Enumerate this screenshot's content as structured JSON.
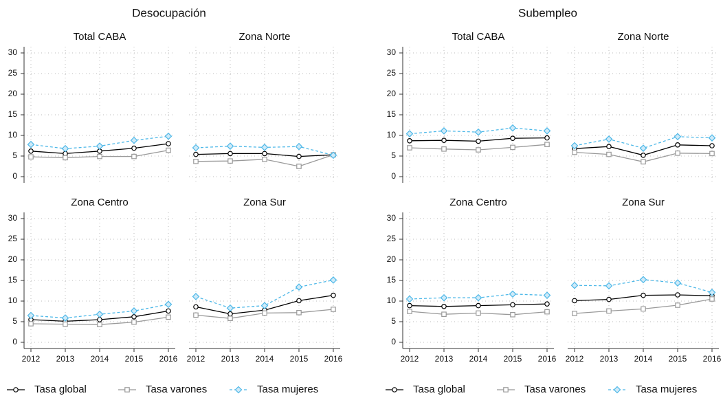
{
  "sections": [
    {
      "title": "Desocupación"
    },
    {
      "title": "Subempleo"
    }
  ],
  "chart_data": [
    {
      "type": "line",
      "title": "Total CABA",
      "x": [
        2012,
        2013,
        2014,
        2015,
        2016
      ],
      "xlim": [
        2011.8,
        2016.2
      ],
      "ylim": [
        -1.5,
        31.5
      ],
      "xticks": [
        2012,
        2013,
        2014,
        2015,
        2016
      ],
      "yticks": [
        0,
        5,
        10,
        15,
        20,
        25,
        30
      ],
      "grid": true,
      "series": [
        {
          "name": "Tasa global",
          "color": "#000000",
          "marker": "circle",
          "linestyle": "solid",
          "values": [
            6.2,
            5.6,
            6.2,
            6.9,
            8.0
          ]
        },
        {
          "name": "Tasa varones",
          "color": "#999999",
          "marker": "square",
          "linestyle": "solid",
          "values": [
            4.8,
            4.6,
            4.9,
            4.9,
            6.4
          ]
        },
        {
          "name": "Tasa mujeres",
          "color": "#4db8e8",
          "marker": "diamond",
          "linestyle": "dashed",
          "values": [
            7.8,
            6.8,
            7.4,
            8.8,
            9.8
          ]
        }
      ]
    },
    {
      "type": "line",
      "title": "Zona Norte",
      "x": [
        2012,
        2013,
        2014,
        2015,
        2016
      ],
      "xlim": [
        2011.8,
        2016.2
      ],
      "ylim": [
        -1.5,
        31.5
      ],
      "xticks": [
        2012,
        2013,
        2014,
        2015,
        2016
      ],
      "yticks": [
        0,
        5,
        10,
        15,
        20,
        25,
        30
      ],
      "grid": true,
      "series": [
        {
          "name": "Tasa global",
          "color": "#000000",
          "marker": "circle",
          "linestyle": "solid",
          "values": [
            5.4,
            5.6,
            5.6,
            4.9,
            5.3
          ]
        },
        {
          "name": "Tasa varones",
          "color": "#999999",
          "marker": "square",
          "linestyle": "solid",
          "values": [
            3.7,
            3.8,
            4.2,
            2.5,
            5.3
          ]
        },
        {
          "name": "Tasa mujeres",
          "color": "#4db8e8",
          "marker": "diamond",
          "linestyle": "dashed",
          "values": [
            7.0,
            7.4,
            7.1,
            7.3,
            5.2
          ]
        }
      ]
    },
    {
      "type": "line",
      "title": "Zona Centro",
      "x": [
        2012,
        2013,
        2014,
        2015,
        2016
      ],
      "xlim": [
        2011.8,
        2016.2
      ],
      "ylim": [
        -1.5,
        31.5
      ],
      "xticks": [
        2012,
        2013,
        2014,
        2015,
        2016
      ],
      "yticks": [
        0,
        5,
        10,
        15,
        20,
        25,
        30
      ],
      "grid": true,
      "series": [
        {
          "name": "Tasa global",
          "color": "#000000",
          "marker": "circle",
          "linestyle": "solid",
          "values": [
            5.5,
            5.1,
            5.5,
            6.2,
            7.6
          ]
        },
        {
          "name": "Tasa varones",
          "color": "#999999",
          "marker": "square",
          "linestyle": "solid",
          "values": [
            4.5,
            4.4,
            4.3,
            4.9,
            6.1
          ]
        },
        {
          "name": "Tasa mujeres",
          "color": "#4db8e8",
          "marker": "diamond",
          "linestyle": "dashed",
          "values": [
            6.5,
            5.9,
            6.8,
            7.6,
            9.2
          ]
        }
      ]
    },
    {
      "type": "line",
      "title": "Zona Sur",
      "x": [
        2012,
        2013,
        2014,
        2015,
        2016
      ],
      "xlim": [
        2011.8,
        2016.2
      ],
      "ylim": [
        -1.5,
        31.5
      ],
      "xticks": [
        2012,
        2013,
        2014,
        2015,
        2016
      ],
      "yticks": [
        0,
        5,
        10,
        15,
        20,
        25,
        30
      ],
      "grid": true,
      "series": [
        {
          "name": "Tasa global",
          "color": "#000000",
          "marker": "circle",
          "linestyle": "solid",
          "values": [
            8.6,
            6.9,
            7.8,
            10.1,
            11.4
          ]
        },
        {
          "name": "Tasa varones",
          "color": "#999999",
          "marker": "square",
          "linestyle": "solid",
          "values": [
            6.6,
            5.8,
            7.1,
            7.2,
            8.0
          ]
        },
        {
          "name": "Tasa mujeres",
          "color": "#4db8e8",
          "marker": "diamond",
          "linestyle": "dashed",
          "values": [
            11.1,
            8.3,
            8.9,
            13.4,
            15.1
          ]
        }
      ]
    },
    {
      "type": "line",
      "title": "Total CABA",
      "x": [
        2012,
        2013,
        2014,
        2015,
        2016
      ],
      "xlim": [
        2011.8,
        2016.2
      ],
      "ylim": [
        -1.5,
        31.5
      ],
      "xticks": [
        2012,
        2013,
        2014,
        2015,
        2016
      ],
      "yticks": [
        0,
        5,
        10,
        15,
        20,
        25,
        30
      ],
      "grid": true,
      "series": [
        {
          "name": "Tasa global",
          "color": "#000000",
          "marker": "circle",
          "linestyle": "solid",
          "values": [
            8.7,
            8.8,
            8.6,
            9.3,
            9.4
          ]
        },
        {
          "name": "Tasa varones",
          "color": "#999999",
          "marker": "square",
          "linestyle": "solid",
          "values": [
            7.0,
            6.7,
            6.5,
            7.1,
            7.8
          ]
        },
        {
          "name": "Tasa mujeres",
          "color": "#4db8e8",
          "marker": "diamond",
          "linestyle": "dashed",
          "values": [
            10.4,
            11.1,
            10.8,
            11.8,
            11.1
          ]
        }
      ]
    },
    {
      "type": "line",
      "title": "Zona Norte",
      "x": [
        2012,
        2013,
        2014,
        2015,
        2016
      ],
      "xlim": [
        2011.8,
        2016.2
      ],
      "ylim": [
        -1.5,
        31.5
      ],
      "xticks": [
        2012,
        2013,
        2014,
        2015,
        2016
      ],
      "yticks": [
        0,
        5,
        10,
        15,
        20,
        25,
        30
      ],
      "grid": true,
      "series": [
        {
          "name": "Tasa global",
          "color": "#000000",
          "marker": "circle",
          "linestyle": "solid",
          "values": [
            6.8,
            7.3,
            5.2,
            7.7,
            7.5
          ]
        },
        {
          "name": "Tasa varones",
          "color": "#999999",
          "marker": "square",
          "linestyle": "solid",
          "values": [
            5.9,
            5.4,
            3.6,
            5.7,
            5.6
          ]
        },
        {
          "name": "Tasa mujeres",
          "color": "#4db8e8",
          "marker": "diamond",
          "linestyle": "dashed",
          "values": [
            7.5,
            9.1,
            6.9,
            9.7,
            9.4
          ]
        }
      ]
    },
    {
      "type": "line",
      "title": "Zona Centro",
      "x": [
        2012,
        2013,
        2014,
        2015,
        2016
      ],
      "xlim": [
        2011.8,
        2016.2
      ],
      "ylim": [
        -1.5,
        31.5
      ],
      "xticks": [
        2012,
        2013,
        2014,
        2015,
        2016
      ],
      "yticks": [
        0,
        5,
        10,
        15,
        20,
        25,
        30
      ],
      "grid": true,
      "series": [
        {
          "name": "Tasa global",
          "color": "#000000",
          "marker": "circle",
          "linestyle": "solid",
          "values": [
            8.9,
            8.7,
            8.9,
            9.1,
            9.3
          ]
        },
        {
          "name": "Tasa varones",
          "color": "#999999",
          "marker": "square",
          "linestyle": "solid",
          "values": [
            7.5,
            6.8,
            7.1,
            6.7,
            7.4
          ]
        },
        {
          "name": "Tasa mujeres",
          "color": "#4db8e8",
          "marker": "diamond",
          "linestyle": "dashed",
          "values": [
            10.5,
            10.8,
            10.8,
            11.7,
            11.4
          ]
        }
      ]
    },
    {
      "type": "line",
      "title": "Zona Sur",
      "x": [
        2012,
        2013,
        2014,
        2015,
        2016
      ],
      "xlim": [
        2011.8,
        2016.2
      ],
      "ylim": [
        -1.5,
        31.5
      ],
      "xticks": [
        2012,
        2013,
        2014,
        2015,
        2016
      ],
      "yticks": [
        0,
        5,
        10,
        15,
        20,
        25,
        30
      ],
      "grid": true,
      "series": [
        {
          "name": "Tasa global",
          "color": "#000000",
          "marker": "circle",
          "linestyle": "solid",
          "values": [
            10.1,
            10.4,
            11.4,
            11.5,
            11.3
          ]
        },
        {
          "name": "Tasa varones",
          "color": "#999999",
          "marker": "square",
          "linestyle": "solid",
          "values": [
            7.0,
            7.6,
            8.1,
            9.0,
            10.5
          ]
        },
        {
          "name": "Tasa mujeres",
          "color": "#4db8e8",
          "marker": "diamond",
          "linestyle": "dashed",
          "values": [
            13.8,
            13.7,
            15.2,
            14.4,
            12.1
          ]
        }
      ]
    }
  ]
}
